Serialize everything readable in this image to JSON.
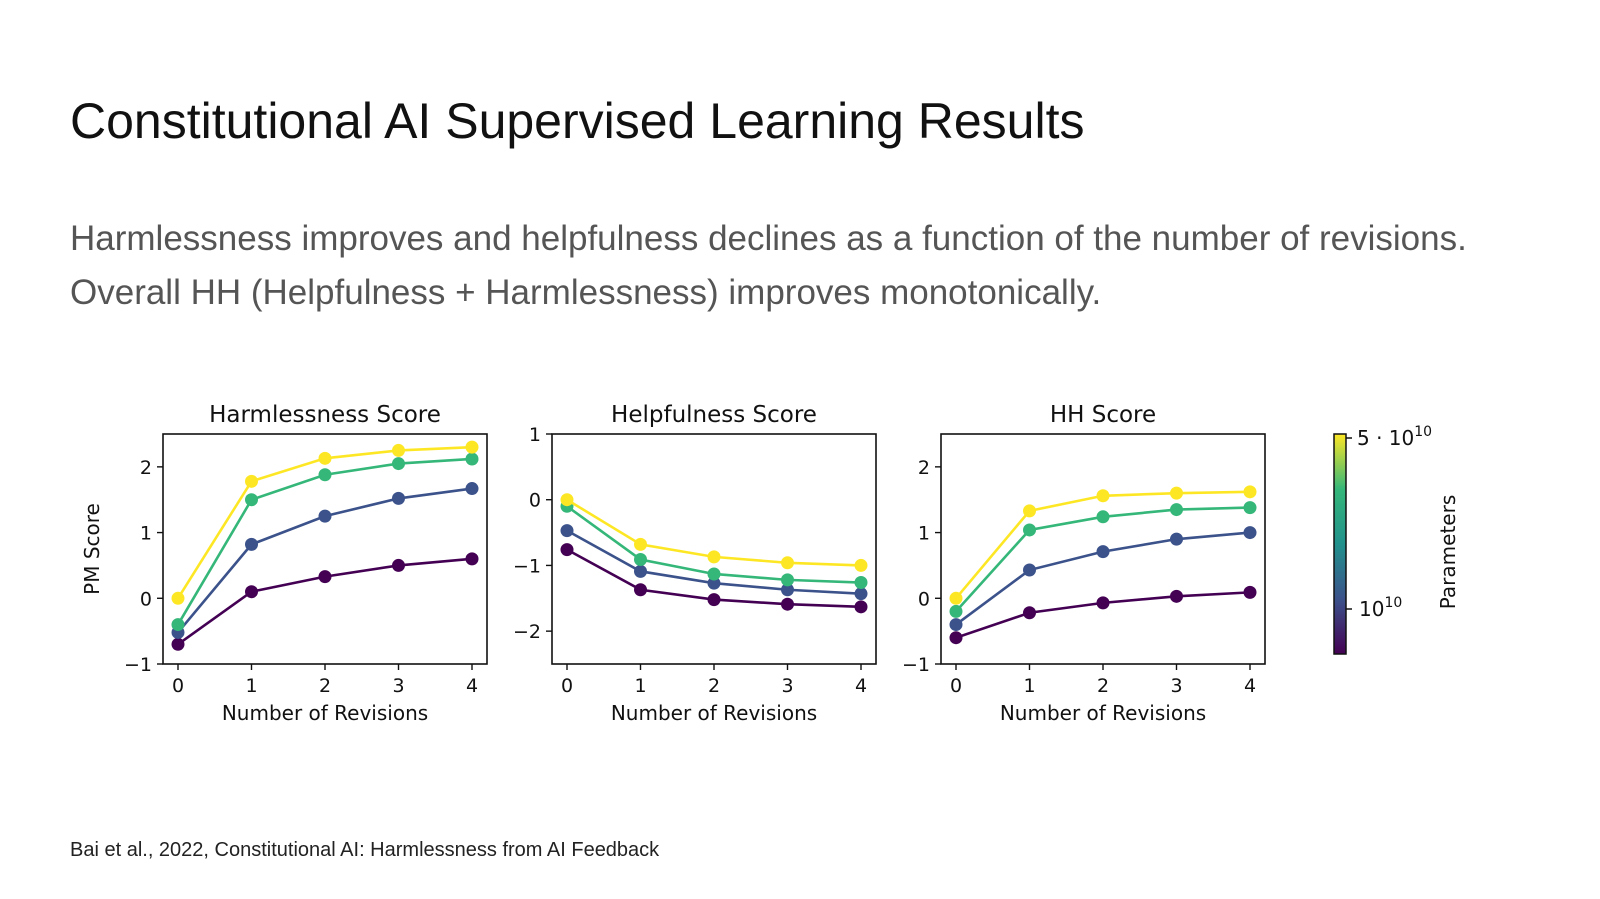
{
  "slide": {
    "title": "Constitutional AI Supervised Learning Results",
    "subtitle": "Harmlessness improves and helpfulness declines as a function of the number of revisions. Overall HH (Helpfulness + Harmlessness) improves monotonically.",
    "citation": "Bai et al., 2022, Constitutional AI: Harmlessness from AI Feedback"
  },
  "chart_data": [
    {
      "type": "line",
      "title": "Harmlessness Score",
      "xlabel": "Number of Revisions",
      "ylabel": "PM Score",
      "x": [
        0,
        1,
        2,
        3,
        4
      ],
      "xticks": [
        "0",
        "1",
        "2",
        "3",
        "4"
      ],
      "ylim": [
        -1,
        2.5
      ],
      "yticks": [
        -1,
        0,
        1,
        2
      ],
      "ytick_labels": [
        "−1",
        "0",
        "1",
        "2"
      ],
      "series": [
        {
          "color": "#440154",
          "values": [
            -0.7,
            0.1,
            0.33,
            0.5,
            0.6
          ]
        },
        {
          "color": "#3b528b",
          "values": [
            -0.52,
            0.82,
            1.25,
            1.52,
            1.67
          ]
        },
        {
          "color": "#35b779",
          "values": [
            -0.4,
            1.5,
            1.88,
            2.05,
            2.12
          ]
        },
        {
          "color": "#fde725",
          "values": [
            0.0,
            1.78,
            2.13,
            2.25,
            2.3
          ]
        }
      ]
    },
    {
      "type": "line",
      "title": "Helpfulness Score",
      "xlabel": "Number of Revisions",
      "ylabel": "",
      "x": [
        0,
        1,
        2,
        3,
        4
      ],
      "xticks": [
        "0",
        "1",
        "2",
        "3",
        "4"
      ],
      "ylim": [
        -2.5,
        1
      ],
      "yticks": [
        -2,
        -1,
        0,
        1
      ],
      "ytick_labels": [
        "−2",
        "−1",
        "0",
        "1"
      ],
      "series": [
        {
          "color": "#440154",
          "values": [
            -0.76,
            -1.37,
            -1.52,
            -1.59,
            -1.63
          ]
        },
        {
          "color": "#3b528b",
          "values": [
            -0.47,
            -1.09,
            -1.27,
            -1.37,
            -1.43
          ]
        },
        {
          "color": "#35b779",
          "values": [
            -0.1,
            -0.91,
            -1.13,
            -1.22,
            -1.26
          ]
        },
        {
          "color": "#fde725",
          "values": [
            0.0,
            -0.68,
            -0.87,
            -0.96,
            -1.0
          ]
        }
      ]
    },
    {
      "type": "line",
      "title": "HH Score",
      "xlabel": "Number of Revisions",
      "ylabel": "",
      "x": [
        0,
        1,
        2,
        3,
        4
      ],
      "xticks": [
        "0",
        "1",
        "2",
        "3",
        "4"
      ],
      "ylim": [
        -1,
        2.5
      ],
      "yticks": [
        -1,
        0,
        1,
        2
      ],
      "ytick_labels": [
        "−1",
        "0",
        "1",
        "2"
      ],
      "series": [
        {
          "color": "#440154",
          "values": [
            -0.6,
            -0.22,
            -0.07,
            0.03,
            0.09
          ]
        },
        {
          "color": "#3b528b",
          "values": [
            -0.4,
            0.43,
            0.71,
            0.9,
            1.0
          ]
        },
        {
          "color": "#35b779",
          "values": [
            -0.2,
            1.04,
            1.24,
            1.35,
            1.38
          ]
        },
        {
          "color": "#fde725",
          "values": [
            0.0,
            1.33,
            1.56,
            1.6,
            1.62
          ]
        }
      ]
    }
  ],
  "colorbar": {
    "label": "Parameters",
    "top_tick": "5 · 10",
    "top_exp": "10",
    "mid_tick": "10",
    "mid_exp": "10",
    "colors": [
      "#440154",
      "#3b528b",
      "#21918c",
      "#35b779",
      "#fde725"
    ]
  }
}
